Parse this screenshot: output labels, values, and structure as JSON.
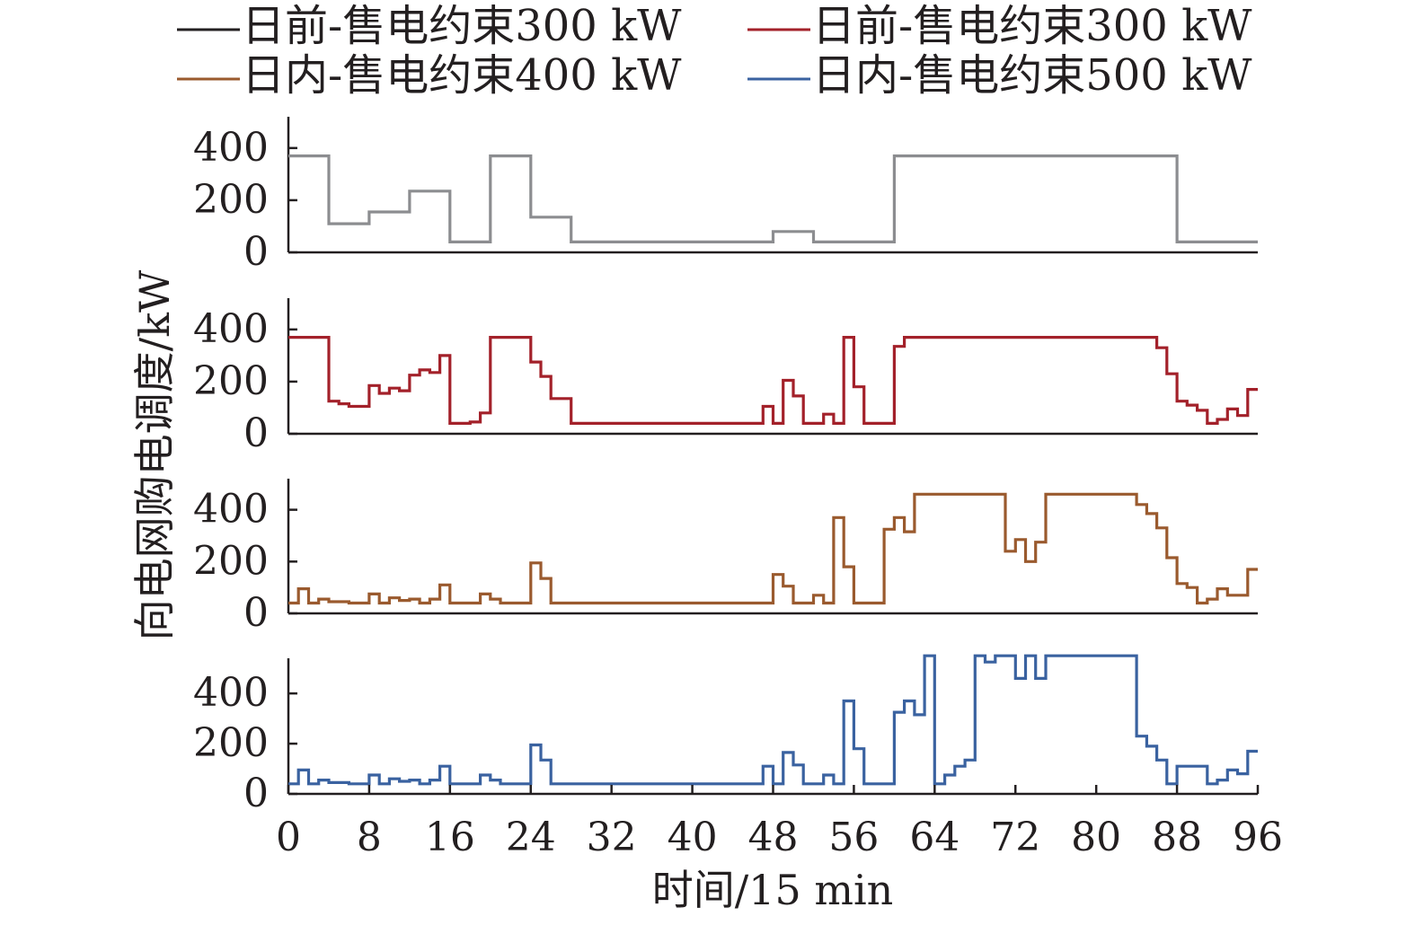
{
  "chart_data": {
    "type": "line",
    "step": true,
    "xlabel": "时间/15 min",
    "ylabel": "向电网购电调度/kW",
    "xlim": [
      0,
      96
    ],
    "x_ticks": [
      "0",
      "8",
      "16",
      "24",
      "32",
      "40",
      "48",
      "56",
      "64",
      "72",
      "80",
      "88",
      "96"
    ],
    "legend_placement": "top",
    "series": [
      {
        "name": "日前-售电约束300 kW",
        "legend_color": "#231f20",
        "color": "#8c8d90",
        "ylim": [
          0,
          520
        ],
        "y_ticks": [
          "0",
          "200",
          "400"
        ],
        "points": [
          [
            0,
            370
          ],
          [
            4,
            110
          ],
          [
            8,
            155
          ],
          [
            12,
            235
          ],
          [
            16,
            40
          ],
          [
            20,
            370
          ],
          [
            24,
            135
          ],
          [
            28,
            40
          ],
          [
            48,
            80
          ],
          [
            52,
            40
          ],
          [
            60,
            370
          ],
          [
            88,
            40
          ],
          [
            96,
            40
          ]
        ]
      },
      {
        "name": "日前-售电约束300 kW",
        "legend_color": "#a3212a",
        "color": "#a3212a",
        "ylim": [
          0,
          520
        ],
        "y_ticks": [
          "0",
          "200",
          "400"
        ],
        "points": [
          [
            0,
            370
          ],
          [
            4,
            125
          ],
          [
            5,
            115
          ],
          [
            6,
            105
          ],
          [
            8,
            185
          ],
          [
            9,
            155
          ],
          [
            10,
            175
          ],
          [
            11,
            165
          ],
          [
            12,
            225
          ],
          [
            13,
            245
          ],
          [
            14,
            235
          ],
          [
            15,
            300
          ],
          [
            16,
            40
          ],
          [
            18,
            45
          ],
          [
            19,
            80
          ],
          [
            20,
            370
          ],
          [
            24,
            275
          ],
          [
            25,
            220
          ],
          [
            26,
            135
          ],
          [
            28,
            40
          ],
          [
            47,
            105
          ],
          [
            48,
            40
          ],
          [
            49,
            205
          ],
          [
            50,
            145
          ],
          [
            51,
            40
          ],
          [
            53,
            75
          ],
          [
            54,
            40
          ],
          [
            55,
            370
          ],
          [
            56,
            180
          ],
          [
            57,
            40
          ],
          [
            60,
            335
          ],
          [
            61,
            370
          ],
          [
            86,
            330
          ],
          [
            87,
            230
          ],
          [
            88,
            125
          ],
          [
            89,
            110
          ],
          [
            90,
            90
          ],
          [
            91,
            40
          ],
          [
            92,
            55
          ],
          [
            93,
            95
          ],
          [
            94,
            70
          ],
          [
            95,
            170
          ],
          [
            96,
            170
          ]
        ]
      },
      {
        "name": "日内-售电约束400 kW",
        "legend_color": "#9a5a2e",
        "color": "#9a5a2e",
        "ylim": [
          0,
          520
        ],
        "y_ticks": [
          "0",
          "200",
          "400"
        ],
        "points": [
          [
            0,
            40
          ],
          [
            1,
            95
          ],
          [
            2,
            40
          ],
          [
            3,
            55
          ],
          [
            4,
            45
          ],
          [
            6,
            40
          ],
          [
            8,
            75
          ],
          [
            9,
            40
          ],
          [
            10,
            60
          ],
          [
            11,
            50
          ],
          [
            12,
            55
          ],
          [
            13,
            40
          ],
          [
            14,
            55
          ],
          [
            15,
            110
          ],
          [
            16,
            40
          ],
          [
            19,
            75
          ],
          [
            20,
            55
          ],
          [
            21,
            40
          ],
          [
            24,
            195
          ],
          [
            25,
            135
          ],
          [
            26,
            40
          ],
          [
            48,
            150
          ],
          [
            49,
            105
          ],
          [
            50,
            40
          ],
          [
            52,
            70
          ],
          [
            53,
            40
          ],
          [
            54,
            370
          ],
          [
            55,
            180
          ],
          [
            56,
            40
          ],
          [
            59,
            325
          ],
          [
            60,
            370
          ],
          [
            61,
            315
          ],
          [
            62,
            460
          ],
          [
            71,
            240
          ],
          [
            72,
            285
          ],
          [
            73,
            200
          ],
          [
            74,
            275
          ],
          [
            75,
            460
          ],
          [
            84,
            420
          ],
          [
            85,
            385
          ],
          [
            86,
            330
          ],
          [
            87,
            215
          ],
          [
            88,
            115
          ],
          [
            89,
            100
          ],
          [
            90,
            40
          ],
          [
            91,
            55
          ],
          [
            92,
            95
          ],
          [
            93,
            70
          ],
          [
            95,
            170
          ],
          [
            96,
            170
          ]
        ]
      },
      {
        "name": "日内-售电约束500 kW",
        "legend_color": "#3a62a0",
        "color": "#3a62a0",
        "ylim": [
          0,
          540
        ],
        "y_ticks": [
          "0",
          "200",
          "400"
        ],
        "points": [
          [
            0,
            40
          ],
          [
            1,
            95
          ],
          [
            2,
            40
          ],
          [
            3,
            55
          ],
          [
            4,
            45
          ],
          [
            6,
            40
          ],
          [
            8,
            75
          ],
          [
            9,
            40
          ],
          [
            10,
            60
          ],
          [
            11,
            50
          ],
          [
            12,
            55
          ],
          [
            13,
            40
          ],
          [
            14,
            55
          ],
          [
            15,
            110
          ],
          [
            16,
            40
          ],
          [
            19,
            75
          ],
          [
            20,
            55
          ],
          [
            21,
            40
          ],
          [
            24,
            195
          ],
          [
            25,
            135
          ],
          [
            26,
            40
          ],
          [
            47,
            110
          ],
          [
            48,
            40
          ],
          [
            49,
            165
          ],
          [
            50,
            115
          ],
          [
            51,
            40
          ],
          [
            53,
            75
          ],
          [
            54,
            40
          ],
          [
            55,
            370
          ],
          [
            56,
            180
          ],
          [
            57,
            40
          ],
          [
            60,
            325
          ],
          [
            61,
            370
          ],
          [
            62,
            315
          ],
          [
            63,
            550
          ],
          [
            64,
            40
          ],
          [
            65,
            75
          ],
          [
            66,
            110
          ],
          [
            67,
            135
          ],
          [
            68,
            550
          ],
          [
            69,
            525
          ],
          [
            70,
            550
          ],
          [
            72,
            460
          ],
          [
            73,
            550
          ],
          [
            74,
            460
          ],
          [
            75,
            550
          ],
          [
            76,
            550
          ],
          [
            84,
            230
          ],
          [
            85,
            190
          ],
          [
            86,
            135
          ],
          [
            87,
            40
          ],
          [
            88,
            110
          ],
          [
            90,
            110
          ],
          [
            91,
            40
          ],
          [
            92,
            55
          ],
          [
            93,
            95
          ],
          [
            94,
            80
          ],
          [
            95,
            170
          ],
          [
            96,
            170
          ]
        ]
      }
    ]
  }
}
